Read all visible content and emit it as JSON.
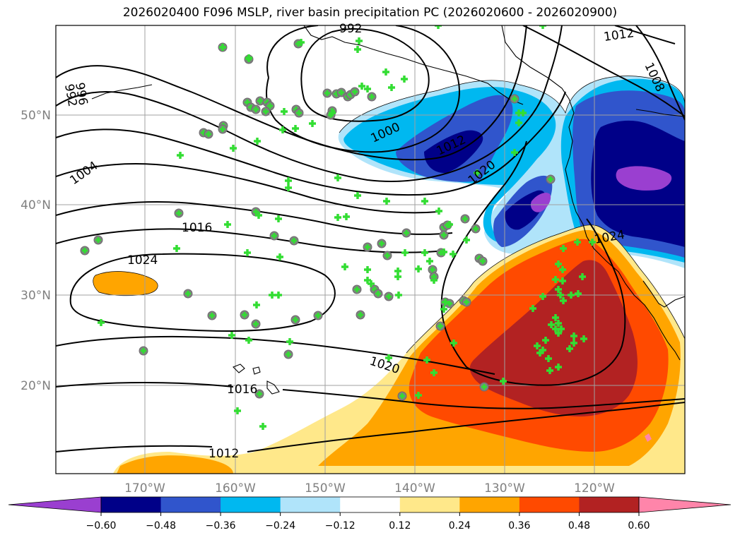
{
  "title": "2026020400 F096 MSLP, river basin precipitation PC (2026020600 - 2026020900)",
  "lat_labels": [
    "50°N",
    "40°N",
    "30°N",
    "20°N"
  ],
  "lon_labels": [
    "170°W",
    "160°W",
    "150°W",
    "140°W",
    "130°W",
    "120°W"
  ],
  "isobar_labels": [
    "992",
    "1012",
    "1008",
    "996",
    "992",
    "1000",
    "1012",
    "1004",
    "1020",
    "1016",
    "1024",
    "1024",
    "1020",
    "1016",
    "1012"
  ],
  "colorbar": {
    "ticks": [
      "−0.60",
      "−0.48",
      "−0.36",
      "−0.24",
      "−0.12",
      "0.12",
      "0.24",
      "0.36",
      "0.48",
      "0.60"
    ],
    "colors": [
      "#9a3fd0",
      "#000088",
      "#3055cc",
      "#00b8f0",
      "#b0e4fa",
      "#ffffff",
      "#ffe88a",
      "#ffa500",
      "#ff4a00",
      "#b22222",
      "#ff85aa"
    ]
  }
}
